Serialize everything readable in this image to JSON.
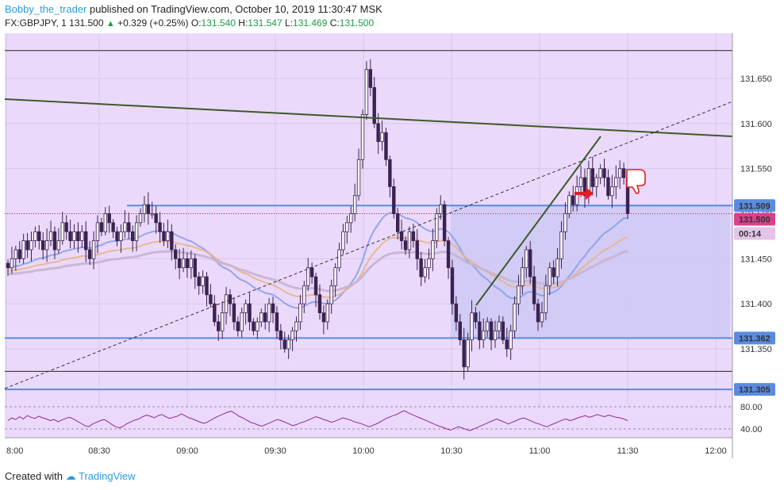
{
  "header": {
    "author": "Bobby_the_trader",
    "published": "published on TradingView.com, October 10, 2019 11:30:47 MSK",
    "symbol": "FX:GBPJPY, 1",
    "last": "131.500",
    "change": "+0.329 (+0.25%)",
    "o_label": "O:",
    "o": "131.540",
    "h_label": "H:",
    "h": "131.547",
    "l_label": "L:",
    "l": "131.469",
    "c_label": "C:",
    "c": "131.500"
  },
  "footer": {
    "created_with": "Created with",
    "brand": "TradingView"
  },
  "colors": {
    "bg": "#ebd9fb",
    "rect": "#cdc8f3",
    "level": "#5b8be0",
    "candle": "#3a2350",
    "trend": "#3b5a2a",
    "arrow": "#e02020"
  },
  "chart_data": {
    "type": "candlestick",
    "symbol": "FX:GBPJPY",
    "interval": "1",
    "x_ticks": [
      "8:00",
      "08:30",
      "09:00",
      "09:30",
      "10:00",
      "10:30",
      "11:00",
      "11:30",
      "12:00"
    ],
    "y_ticks": [
      "131.350",
      "131.400",
      "131.450",
      "131.500",
      "131.550",
      "131.600",
      "131.650"
    ],
    "ylim": [
      131.3,
      131.69
    ],
    "price_labels": {
      "level_1": "131.509",
      "last": "131.500",
      "countdown": "00:14",
      "level_2": "131.362",
      "level_3": "131.305"
    },
    "horizontal_levels": [
      131.681,
      131.509,
      131.362,
      131.325,
      131.305
    ],
    "rsi": {
      "ticks": [
        "80.00",
        "40.00"
      ],
      "values": [
        55,
        60,
        57,
        62,
        58,
        64,
        61,
        59,
        63,
        60,
        58,
        55,
        57,
        53,
        56,
        59,
        61,
        58,
        54,
        50,
        46,
        44,
        49,
        52,
        55,
        57,
        53,
        48,
        44,
        42,
        45,
        50,
        53,
        56,
        58,
        62,
        65,
        63,
        60,
        64,
        66,
        62,
        59,
        61,
        63,
        67,
        64,
        60,
        58,
        55,
        52,
        50,
        53,
        57,
        61,
        64,
        67,
        70,
        72,
        68,
        63,
        60,
        56,
        52,
        50,
        47,
        45,
        48,
        51,
        54,
        57,
        55,
        52,
        49,
        46,
        48,
        51,
        53,
        56,
        59,
        62,
        60,
        57,
        55,
        52,
        54,
        57,
        60,
        58,
        56,
        53,
        51,
        49,
        46,
        44,
        47,
        50,
        54,
        58,
        61,
        64,
        66,
        70,
        73,
        69,
        66,
        63,
        60,
        57,
        54,
        51,
        48,
        45,
        43,
        40,
        38,
        41,
        44,
        42,
        39,
        37,
        40,
        43,
        46,
        49,
        52,
        55,
        58,
        55,
        52,
        49,
        52,
        55,
        58,
        60,
        57,
        54,
        51,
        49,
        46,
        44,
        47,
        50,
        53,
        56,
        58,
        55,
        57,
        60,
        62,
        64,
        61,
        63,
        66,
        64,
        62,
        65,
        63,
        61,
        60,
        58,
        55
      ]
    },
    "series": [
      {
        "values": [
          131.44,
          131.45,
          131.46,
          131.45,
          131.47,
          131.46,
          131.47,
          131.48,
          131.47,
          131.46,
          131.47,
          131.48,
          131.46,
          131.47,
          131.49,
          131.48,
          131.47,
          131.48,
          131.47,
          131.48,
          131.46,
          131.45,
          131.47,
          131.49,
          131.48,
          131.5,
          131.49,
          131.48,
          131.47,
          131.48,
          131.49,
          131.48,
          131.47,
          131.49,
          131.5,
          131.51,
          131.5,
          131.5,
          131.49,
          131.48,
          131.47,
          131.48,
          131.46,
          131.45,
          131.44,
          131.45,
          131.44,
          131.45,
          131.43,
          131.42,
          131.43,
          131.41,
          131.4,
          131.38,
          131.37,
          131.39,
          131.41,
          131.4,
          131.38,
          131.37,
          131.39,
          131.4,
          131.38,
          131.37,
          131.38,
          131.39,
          131.38,
          131.4,
          131.39,
          131.37,
          131.36,
          131.35,
          131.36,
          131.37,
          131.38,
          131.4,
          131.42,
          131.44,
          131.43,
          131.41,
          131.39,
          131.38,
          131.4,
          131.42,
          131.44,
          131.46,
          131.48,
          131.49,
          131.5,
          131.52,
          131.56,
          131.61,
          131.66,
          131.64,
          131.6,
          131.58,
          131.59,
          131.56,
          131.53,
          131.5,
          131.48,
          131.47,
          131.46,
          131.48,
          131.47,
          131.45,
          131.43,
          131.44,
          131.45,
          131.47,
          131.5,
          131.51,
          131.47,
          131.44,
          131.4,
          131.38,
          131.36,
          131.33,
          131.36,
          131.39,
          131.38,
          131.36,
          131.37,
          131.38,
          131.36,
          131.37,
          131.38,
          131.36,
          131.35,
          131.37,
          131.4,
          131.42,
          131.44,
          131.46,
          131.43,
          131.4,
          131.38,
          131.39,
          131.42,
          131.44,
          131.43,
          131.45,
          131.48,
          131.5,
          131.52,
          131.51,
          131.53,
          131.54,
          131.52,
          131.55,
          131.53,
          131.54,
          131.55,
          131.54,
          131.52,
          131.53,
          131.54,
          131.55,
          131.54,
          131.5
        ]
      }
    ]
  }
}
